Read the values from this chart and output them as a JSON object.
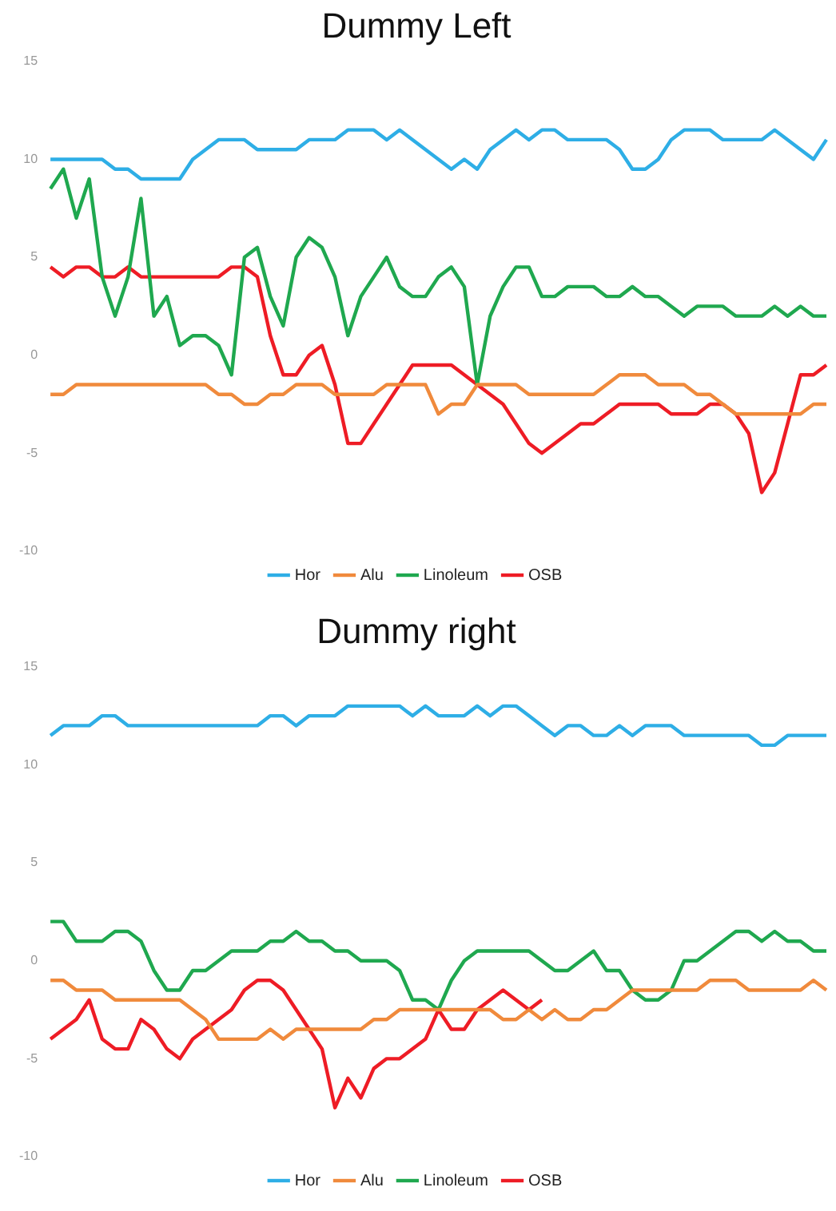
{
  "chart_data": [
    {
      "type": "line",
      "title": "Dummy Left",
      "categories": [
        null,
        null,
        null,
        null,
        null,
        null,
        null,
        null,
        null,
        null,
        null,
        null,
        null,
        null,
        null,
        null,
        null,
        null,
        null,
        null,
        null,
        null,
        null,
        null,
        null,
        null,
        null,
        null,
        null,
        null,
        null,
        null,
        null,
        null,
        null,
        null,
        null,
        null,
        null,
        null,
        null,
        null,
        null,
        null,
        null,
        null,
        null,
        null,
        null,
        null,
        null,
        null,
        null,
        null,
        null,
        null,
        null,
        null,
        null,
        null,
        null
      ],
      "series": [
        {
          "name": "Hor",
          "color": "#2eaee6",
          "values": [
            10,
            10,
            10,
            10,
            10,
            9.5,
            9.5,
            9,
            9,
            9,
            9,
            10,
            10.5,
            11,
            11,
            11,
            10.5,
            10.5,
            10.5,
            10.5,
            11,
            11,
            11,
            11.5,
            11.5,
            11.5,
            11,
            11.5,
            11,
            10.5,
            10,
            9.5,
            10,
            9.5,
            10.5,
            11,
            11.5,
            11,
            11.5,
            11.5,
            11,
            11,
            11,
            11,
            10.5,
            9.5,
            9.5,
            10,
            11,
            11.5,
            11.5,
            11.5,
            11,
            11,
            11,
            11,
            11.5,
            11,
            10.5,
            10,
            11
          ]
        },
        {
          "name": "Alu",
          "color": "#f08a3c",
          "values": [
            -2,
            -2,
            -1.5,
            -1.5,
            -1.5,
            -1.5,
            -1.5,
            -1.5,
            -1.5,
            -1.5,
            -1.5,
            -1.5,
            -1.5,
            -2,
            -2,
            -2.5,
            -2.5,
            -2,
            -2,
            -1.5,
            -1.5,
            -1.5,
            -2,
            -2,
            -2,
            -2,
            -1.5,
            -1.5,
            -1.5,
            -1.5,
            -3,
            -2.5,
            -2.5,
            -1.5,
            -1.5,
            -1.5,
            -1.5,
            -2,
            -2,
            -2,
            -2,
            -2,
            -2,
            -1.5,
            -1,
            -1,
            -1,
            -1.5,
            -1.5,
            -1.5,
            -2,
            -2,
            -2.5,
            -3,
            -3,
            -3,
            -3,
            -3,
            -3,
            -2.5,
            -2.5
          ]
        },
        {
          "name": "Linoleum",
          "color": "#1fa84f",
          "values": [
            8.5,
            9.5,
            7,
            9,
            4,
            2,
            4,
            8,
            2,
            3,
            0.5,
            1,
            1,
            0.5,
            -1,
            5,
            5.5,
            3,
            1.5,
            5,
            6,
            5.5,
            4,
            1,
            3,
            4,
            5,
            3.5,
            3,
            3,
            4,
            4.5,
            3.5,
            -1.5,
            2,
            3.5,
            4.5,
            4.5,
            3,
            3,
            3.5,
            3.5,
            3.5,
            3,
            3,
            3.5,
            3,
            3,
            2.5,
            2,
            2.5,
            2.5,
            2.5,
            2,
            2,
            2,
            2.5,
            2,
            2.5,
            2,
            2
          ]
        },
        {
          "name": "OSB",
          "color": "#ee1c25",
          "values": [
            4.5,
            4,
            4.5,
            4.5,
            4,
            4,
            4.5,
            4,
            4,
            4,
            4,
            4,
            4,
            4,
            4.5,
            4.5,
            4,
            1,
            -1,
            -1,
            0,
            0.5,
            -1.5,
            -4.5,
            -4.5,
            -3.5,
            -2.5,
            -1.5,
            -0.5,
            -0.5,
            -0.5,
            -0.5,
            -1,
            -1.5,
            -2,
            -2.5,
            -3.5,
            -4.5,
            -5,
            -4.5,
            -4,
            -3.5,
            -3.5,
            -3,
            -2.5,
            -2.5,
            -2.5,
            -2.5,
            -3,
            -3,
            -3,
            -2.5,
            -2.5,
            -3,
            -4,
            -7,
            -6,
            -3.5,
            -1,
            -1,
            -0.5
          ]
        }
      ],
      "ylim": [
        -10,
        15
      ],
      "yticks": [
        -10,
        -5,
        0,
        5,
        10,
        15
      ],
      "grid": false,
      "legend": "bottom",
      "tick_labels": "y",
      "marker": "none",
      "line_style": "solid"
    },
    {
      "type": "line",
      "title": "Dummy right",
      "categories": [
        null,
        null,
        null,
        null,
        null,
        null,
        null,
        null,
        null,
        null,
        null,
        null,
        null,
        null,
        null,
        null,
        null,
        null,
        null,
        null,
        null,
        null,
        null,
        null,
        null,
        null,
        null,
        null,
        null,
        null,
        null,
        null,
        null,
        null,
        null,
        null,
        null,
        null,
        null,
        null,
        null,
        null,
        null,
        null,
        null,
        null,
        null,
        null,
        null,
        null,
        null,
        null,
        null,
        null,
        null,
        null,
        null,
        null,
        null,
        null,
        null
      ],
      "series": [
        {
          "name": "Hor",
          "color": "#2eaee6",
          "values": [
            11.5,
            12,
            12,
            12,
            12.5,
            12.5,
            12,
            12,
            12,
            12,
            12,
            12,
            12,
            12,
            12,
            12,
            12,
            12.5,
            12.5,
            12,
            12.5,
            12.5,
            12.5,
            13,
            13,
            13,
            13,
            13,
            12.5,
            13,
            12.5,
            12.5,
            12.5,
            13,
            12.5,
            13,
            13,
            12.5,
            12,
            11.5,
            12,
            12,
            11.5,
            11.5,
            12,
            11.5,
            12,
            12,
            12,
            11.5,
            11.5,
            11.5,
            11.5,
            11.5,
            11.5,
            11,
            11,
            11.5,
            11.5,
            11.5,
            11.5
          ]
        },
        {
          "name": "Alu",
          "color": "#f08a3c",
          "values": [
            -1,
            -1,
            -1.5,
            -1.5,
            -1.5,
            -2,
            -2,
            -2,
            -2,
            -2,
            -2,
            -2.5,
            -3,
            -4,
            -4,
            -4,
            -4,
            -3.5,
            -4,
            -3.5,
            -3.5,
            -3.5,
            -3.5,
            -3.5,
            -3.5,
            -3,
            -3,
            -2.5,
            -2.5,
            -2.5,
            -2.5,
            -2.5,
            -2.5,
            -2.5,
            -2.5,
            -3,
            -3,
            -2.5,
            -3,
            -2.5,
            -3,
            -3,
            -2.5,
            -2.5,
            -2,
            -1.5,
            -1.5,
            -1.5,
            -1.5,
            -1.5,
            -1.5,
            -1,
            -1,
            -1,
            -1.5,
            -1.5,
            -1.5,
            -1.5,
            -1.5,
            -1,
            -1.5
          ]
        },
        {
          "name": "Linoleum",
          "color": "#1fa84f",
          "values": [
            2,
            2,
            1,
            1,
            1,
            1.5,
            1.5,
            1,
            -0.5,
            -1.5,
            -1.5,
            -0.5,
            -0.5,
            0,
            0.5,
            0.5,
            0.5,
            1,
            1,
            1.5,
            1,
            1,
            0.5,
            0.5,
            0,
            0,
            0,
            -0.5,
            -2,
            -2,
            -2.5,
            -1,
            0,
            0.5,
            0.5,
            0.5,
            0.5,
            0.5,
            0,
            -0.5,
            -0.5,
            0,
            0.5,
            -0.5,
            -0.5,
            -1.5,
            -2,
            -2,
            -1.5,
            0,
            0,
            0.5,
            1,
            1.5,
            1.5,
            1,
            1.5,
            1,
            1,
            0.5,
            0.5
          ]
        },
        {
          "name": "OSB",
          "color": "#ee1c25",
          "values": [
            -4,
            -3.5,
            -3,
            -2,
            -4,
            -4.5,
            -4.5,
            -3,
            -3.5,
            -4.5,
            -5,
            -4,
            -3.5,
            -3,
            -2.5,
            -1.5,
            -1,
            -1,
            -1.5,
            -2.5,
            -3.5,
            -4.5,
            -7.5,
            -6,
            -7,
            -5.5,
            -5,
            -5,
            -4.5,
            -4,
            -2.5,
            -3.5,
            -3.5,
            -2.5,
            -2,
            -1.5,
            -2,
            -2.5,
            -2,
            null,
            null,
            null,
            null,
            null,
            null,
            null,
            null,
            null,
            null,
            null,
            null,
            null,
            null,
            null,
            null,
            null,
            null,
            null,
            null,
            null,
            null
          ]
        }
      ],
      "ylim": [
        -10,
        15
      ],
      "yticks": [
        -10,
        -5,
        0,
        5,
        10,
        15
      ],
      "grid": false,
      "legend": "bottom",
      "tick_labels": "y",
      "marker": "none",
      "line_style": "solid"
    }
  ]
}
